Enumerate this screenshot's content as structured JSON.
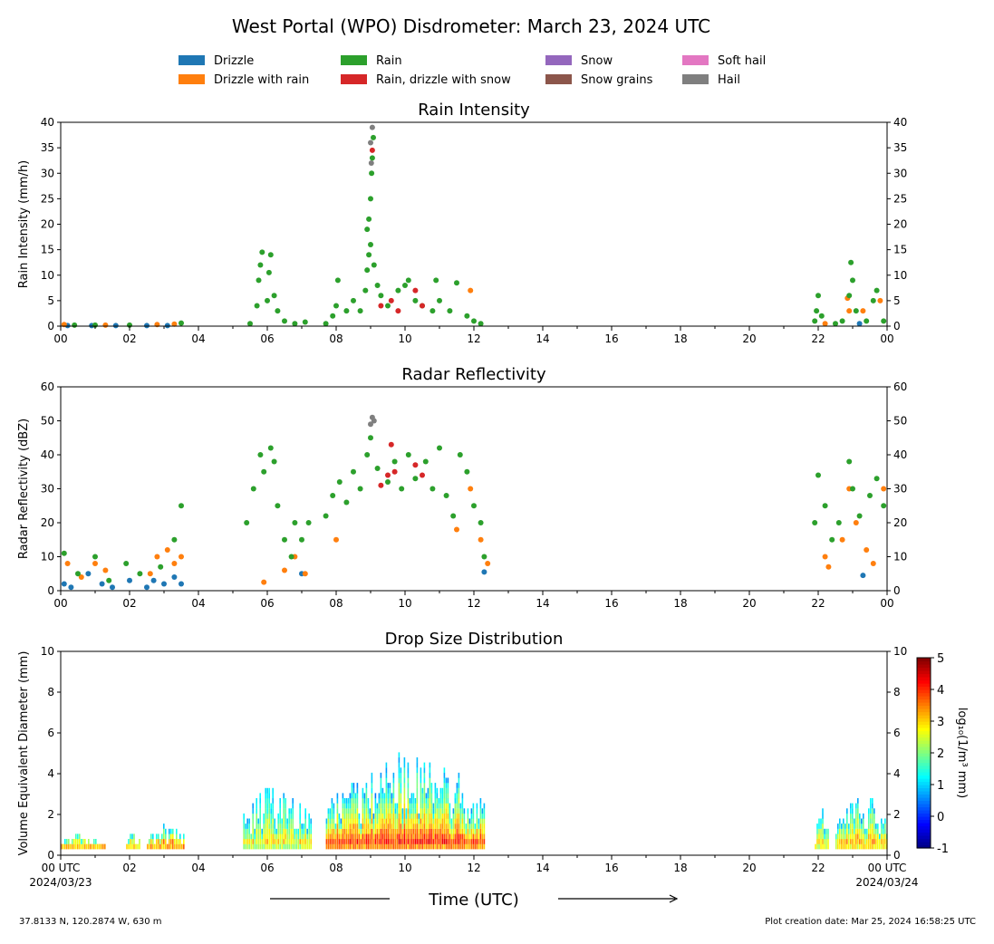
{
  "figure": {
    "title": "West Portal (WPO) Disdrometer: March 23, 2024 UTC",
    "footer_left": "37.8133 N, 120.2874 W, 630 m",
    "footer_right": "Plot creation date: Mar 25, 2024 16:58:25 UTC",
    "time_label": "Time (UTC)"
  },
  "legend": {
    "placement": "top-center",
    "items": [
      {
        "label": "Drizzle",
        "color": "#1f77b4"
      },
      {
        "label": "Drizzle with rain",
        "color": "#ff7f0e"
      },
      {
        "label": "Rain",
        "color": "#2ca02c"
      },
      {
        "label": "Rain, drizzle with snow",
        "color": "#d62728"
      },
      {
        "label": "Snow",
        "color": "#9467bd"
      },
      {
        "label": "Snow grains",
        "color": "#8c564b"
      },
      {
        "label": "Soft hail",
        "color": "#e377c2"
      },
      {
        "label": "Hail",
        "color": "#7f7f7f"
      }
    ]
  },
  "chart_data": [
    {
      "type": "scatter",
      "title": "Rain Intensity",
      "ylabel": "Rain Intensity (mm/h)",
      "xlim": [
        0,
        24
      ],
      "ylim": [
        0,
        40
      ],
      "yticks": [
        0,
        5,
        10,
        15,
        20,
        25,
        30,
        35,
        40
      ],
      "xticklabels": [
        "00",
        "02",
        "04",
        "06",
        "08",
        "10",
        "12",
        "14",
        "16",
        "18",
        "20",
        "22",
        "00"
      ],
      "series": [
        {
          "name": "Drizzle",
          "color": "#1f77b4",
          "points": [
            [
              0.2,
              0.1
            ],
            [
              0.9,
              0.1
            ],
            [
              1.6,
              0.1
            ],
            [
              2.5,
              0.1
            ],
            [
              3.1,
              0.1
            ],
            [
              23.2,
              0.5
            ]
          ]
        },
        {
          "name": "Drizzle with rain",
          "color": "#ff7f0e",
          "points": [
            [
              0.1,
              0.3
            ],
            [
              1.3,
              0.2
            ],
            [
              2.8,
              0.3
            ],
            [
              3.3,
              0.4
            ],
            [
              11.9,
              7.0
            ],
            [
              22.2,
              0.5
            ],
            [
              22.85,
              5.5
            ],
            [
              22.9,
              3.0
            ],
            [
              23.3,
              3.0
            ],
            [
              23.8,
              5.0
            ]
          ]
        },
        {
          "name": "Rain",
          "color": "#2ca02c",
          "points": [
            [
              0.4,
              0.2
            ],
            [
              1.0,
              0.2
            ],
            [
              2.0,
              0.2
            ],
            [
              3.5,
              0.6
            ],
            [
              5.5,
              0.5
            ],
            [
              5.7,
              4.0
            ],
            [
              5.75,
              9.0
            ],
            [
              5.8,
              12.0
            ],
            [
              5.85,
              14.5
            ],
            [
              6.0,
              5.0
            ],
            [
              6.05,
              10.5
            ],
            [
              6.1,
              14.0
            ],
            [
              6.2,
              6.0
            ],
            [
              6.3,
              3.0
            ],
            [
              6.5,
              1.0
            ],
            [
              6.8,
              0.5
            ],
            [
              7.1,
              0.8
            ],
            [
              7.7,
              0.5
            ],
            [
              7.9,
              2.0
            ],
            [
              8.0,
              4.0
            ],
            [
              8.05,
              9.0
            ],
            [
              8.3,
              3.0
            ],
            [
              8.5,
              5.0
            ],
            [
              8.7,
              3.0
            ],
            [
              8.85,
              7.0
            ],
            [
              8.9,
              11.0
            ],
            [
              8.95,
              14.0
            ],
            [
              8.9,
              19.0
            ],
            [
              8.95,
              21.0
            ],
            [
              9.0,
              25.0
            ],
            [
              9.03,
              30.0
            ],
            [
              9.05,
              33.0
            ],
            [
              9.08,
              37.0
            ],
            [
              9.0,
              16.0
            ],
            [
              9.1,
              12.0
            ],
            [
              9.2,
              8.0
            ],
            [
              9.3,
              6.0
            ],
            [
              9.5,
              4.0
            ],
            [
              9.8,
              7.0
            ],
            [
              10.0,
              8.0
            ],
            [
              10.1,
              9.0
            ],
            [
              10.3,
              5.0
            ],
            [
              10.5,
              4.0
            ],
            [
              10.8,
              3.0
            ],
            [
              10.9,
              9.0
            ],
            [
              11.0,
              5.0
            ],
            [
              11.3,
              3.0
            ],
            [
              11.5,
              8.5
            ],
            [
              11.8,
              2.0
            ],
            [
              12.0,
              1.0
            ],
            [
              12.2,
              0.5
            ],
            [
              21.9,
              1.0
            ],
            [
              21.95,
              3.0
            ],
            [
              22.0,
              6.0
            ],
            [
              22.1,
              2.0
            ],
            [
              22.5,
              0.5
            ],
            [
              22.7,
              1.0
            ],
            [
              22.9,
              6.0
            ],
            [
              22.95,
              12.5
            ],
            [
              23.0,
              9.0
            ],
            [
              23.1,
              3.0
            ],
            [
              23.4,
              1.0
            ],
            [
              23.6,
              5.0
            ],
            [
              23.7,
              7.0
            ],
            [
              23.9,
              1.0
            ]
          ]
        },
        {
          "name": "Rain, drizzle with snow",
          "color": "#d62728",
          "points": [
            [
              9.05,
              34.5
            ],
            [
              9.3,
              4.0
            ],
            [
              9.6,
              5.0
            ],
            [
              9.8,
              3.0
            ],
            [
              10.3,
              7.0
            ],
            [
              10.5,
              4.0
            ]
          ]
        },
        {
          "name": "Hail",
          "color": "#7f7f7f",
          "points": [
            [
              9.0,
              36.0
            ],
            [
              9.05,
              39.0
            ],
            [
              9.02,
              32.0
            ]
          ]
        }
      ]
    },
    {
      "type": "scatter",
      "title": "Radar Reflectivity",
      "ylabel": "Radar Reflectivity (dBZ)",
      "xlim": [
        0,
        24
      ],
      "ylim": [
        0,
        60
      ],
      "yticks": [
        0,
        10,
        20,
        30,
        40,
        50,
        60
      ],
      "xticklabels": [
        "00",
        "02",
        "04",
        "06",
        "08",
        "10",
        "12",
        "14",
        "16",
        "18",
        "20",
        "22",
        "00"
      ],
      "series": [
        {
          "name": "Drizzle",
          "color": "#1f77b4",
          "points": [
            [
              0.1,
              2.0
            ],
            [
              0.3,
              1.0
            ],
            [
              0.8,
              5.0
            ],
            [
              1.2,
              2.0
            ],
            [
              1.5,
              1.0
            ],
            [
              2.0,
              3.0
            ],
            [
              2.5,
              1.0
            ],
            [
              2.7,
              3.0
            ],
            [
              3.0,
              2.0
            ],
            [
              3.3,
              4.0
            ],
            [
              3.5,
              2.0
            ],
            [
              7.0,
              5.0
            ],
            [
              12.3,
              5.5
            ],
            [
              23.3,
              4.5
            ]
          ]
        },
        {
          "name": "Drizzle with rain",
          "color": "#ff7f0e",
          "points": [
            [
              0.2,
              8.0
            ],
            [
              0.6,
              4.0
            ],
            [
              1.0,
              8.0
            ],
            [
              1.3,
              6.0
            ],
            [
              2.6,
              5.0
            ],
            [
              2.8,
              10.0
            ],
            [
              3.1,
              12.0
            ],
            [
              3.3,
              8.0
            ],
            [
              3.5,
              10.0
            ],
            [
              5.9,
              2.5
            ],
            [
              6.5,
              6.0
            ],
            [
              6.8,
              10.0
            ],
            [
              7.1,
              5.0
            ],
            [
              8.0,
              15.0
            ],
            [
              11.5,
              18.0
            ],
            [
              11.9,
              30.0
            ],
            [
              12.2,
              15.0
            ],
            [
              12.4,
              8.0
            ],
            [
              22.2,
              10.0
            ],
            [
              22.3,
              7.0
            ],
            [
              22.7,
              15.0
            ],
            [
              22.9,
              30.0
            ],
            [
              23.1,
              20.0
            ],
            [
              23.4,
              12.0
            ],
            [
              23.6,
              8.0
            ],
            [
              23.9,
              30.0
            ]
          ]
        },
        {
          "name": "Rain",
          "color": "#2ca02c",
          "points": [
            [
              0.1,
              11.0
            ],
            [
              0.5,
              5.0
            ],
            [
              1.0,
              10.0
            ],
            [
              1.4,
              3.0
            ],
            [
              1.9,
              8.0
            ],
            [
              2.3,
              5.0
            ],
            [
              2.9,
              7.0
            ],
            [
              3.3,
              15.0
            ],
            [
              3.5,
              25.0
            ],
            [
              5.4,
              20.0
            ],
            [
              5.6,
              30.0
            ],
            [
              5.8,
              40.0
            ],
            [
              5.9,
              35.0
            ],
            [
              6.1,
              42.0
            ],
            [
              6.2,
              38.0
            ],
            [
              6.3,
              25.0
            ],
            [
              6.5,
              15.0
            ],
            [
              6.7,
              10.0
            ],
            [
              6.8,
              20.0
            ],
            [
              7.0,
              15.0
            ],
            [
              7.2,
              20.0
            ],
            [
              7.7,
              22.0
            ],
            [
              7.9,
              28.0
            ],
            [
              8.1,
              32.0
            ],
            [
              8.3,
              26.0
            ],
            [
              8.5,
              35.0
            ],
            [
              8.7,
              30.0
            ],
            [
              8.9,
              40.0
            ],
            [
              9.0,
              45.0
            ],
            [
              9.2,
              36.0
            ],
            [
              9.5,
              32.0
            ],
            [
              9.7,
              38.0
            ],
            [
              9.9,
              30.0
            ],
            [
              10.1,
              40.0
            ],
            [
              10.3,
              33.0
            ],
            [
              10.6,
              38.0
            ],
            [
              10.8,
              30.0
            ],
            [
              11.0,
              42.0
            ],
            [
              11.2,
              28.0
            ],
            [
              11.4,
              22.0
            ],
            [
              11.6,
              40.0
            ],
            [
              11.8,
              35.0
            ],
            [
              12.0,
              25.0
            ],
            [
              12.2,
              20.0
            ],
            [
              12.3,
              10.0
            ],
            [
              21.9,
              20.0
            ],
            [
              22.0,
              34.0
            ],
            [
              22.2,
              25.0
            ],
            [
              22.4,
              15.0
            ],
            [
              22.6,
              20.0
            ],
            [
              22.9,
              38.0
            ],
            [
              23.0,
              30.0
            ],
            [
              23.2,
              22.0
            ],
            [
              23.5,
              28.0
            ],
            [
              23.7,
              33.0
            ],
            [
              23.9,
              25.0
            ]
          ]
        },
        {
          "name": "Rain, drizzle with snow",
          "color": "#d62728",
          "points": [
            [
              9.3,
              31.0
            ],
            [
              9.5,
              34.0
            ],
            [
              9.6,
              43.0
            ],
            [
              9.7,
              35.0
            ],
            [
              10.3,
              37.0
            ],
            [
              10.5,
              34.0
            ]
          ]
        },
        {
          "name": "Hail",
          "color": "#7f7f7f",
          "points": [
            [
              9.0,
              49.0
            ],
            [
              9.05,
              51.0
            ],
            [
              9.1,
              50.0
            ]
          ]
        }
      ]
    },
    {
      "type": "heatmap",
      "title": "Drop Size Distribution",
      "ylabel": "Volume Equivalent Diameter (mm)",
      "xlim": [
        0,
        24
      ],
      "ylim": [
        0,
        10
      ],
      "yticks": [
        0,
        2,
        4,
        6,
        8,
        10
      ],
      "xticklabels": [
        "00 UTC",
        "02",
        "04",
        "06",
        "08",
        "10",
        "12",
        "14",
        "16",
        "18",
        "20",
        "22",
        "00 UTC"
      ],
      "date_start": "2024/03/23",
      "date_end": "2024/03/24",
      "colorbar": {
        "label": "log₁₀(1/m³ mm)",
        "ticks": [
          -1,
          0,
          1,
          2,
          3,
          4,
          5
        ],
        "range": [
          -1,
          5
        ],
        "colormap": "jet"
      },
      "segments": [
        {
          "start": 0.0,
          "end": 1.3,
          "max_diam": 1.1,
          "peak": 4.0
        },
        {
          "start": 1.9,
          "end": 2.3,
          "max_diam": 1.2,
          "peak": 3.8
        },
        {
          "start": 2.5,
          "end": 3.6,
          "max_diam": 1.4,
          "peak": 4.2
        },
        {
          "start": 5.3,
          "end": 7.3,
          "max_diam": 3.5,
          "peak": 3.2
        },
        {
          "start": 7.7,
          "end": 12.3,
          "max_diam": 5.0,
          "peak": 4.3
        },
        {
          "start": 21.9,
          "end": 22.3,
          "max_diam": 2.2,
          "peak": 3.4
        },
        {
          "start": 22.5,
          "end": 24.0,
          "max_diam": 3.0,
          "peak": 3.6
        }
      ]
    }
  ]
}
